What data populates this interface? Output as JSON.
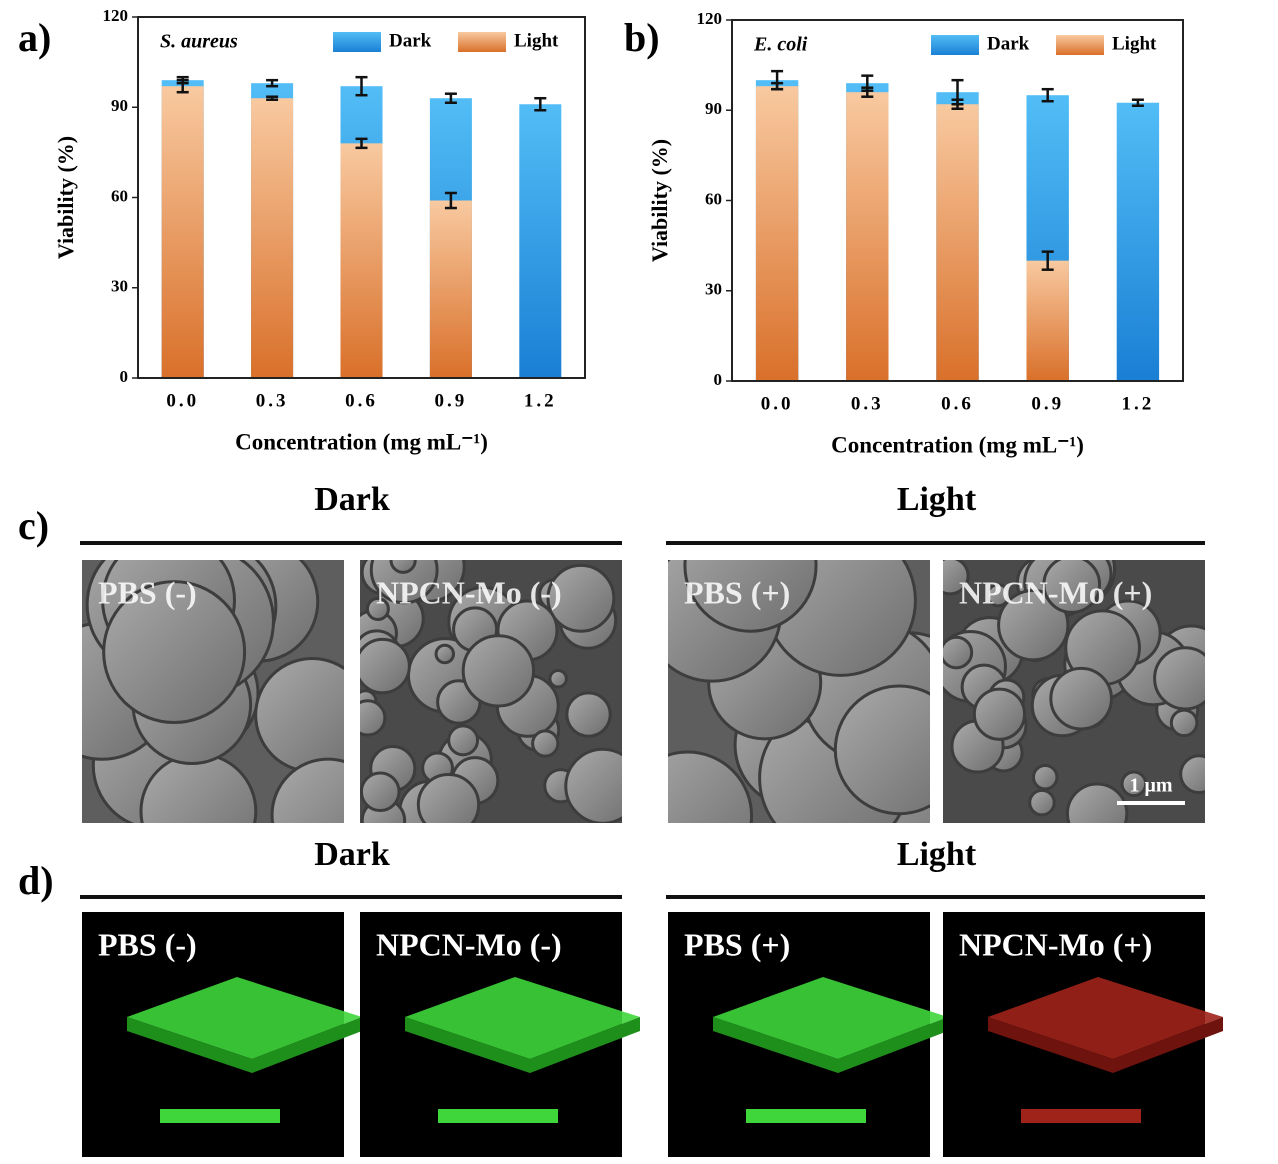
{
  "chart_data": [
    {
      "type": "bar",
      "panel_label": "a)",
      "title": "S. aureus",
      "y_label": "Viability (%)",
      "x_label": "Concentration (mg mL⁻¹)",
      "categories": [
        "0.0",
        "0.3",
        "0.6",
        "0.9",
        "1.2"
      ],
      "series": [
        {
          "name": "Dark",
          "color": "#2b9be6",
          "values": [
            99,
            98,
            97,
            93,
            91
          ],
          "errors": [
            1,
            1,
            3,
            1.5,
            2
          ]
        },
        {
          "name": "Light",
          "color": "#ea8a45",
          "values": [
            97,
            93,
            78,
            59,
            0
          ],
          "errors": [
            2,
            0.5,
            1.5,
            2.5,
            null
          ]
        }
      ],
      "ylim": [
        0,
        120
      ],
      "yticks": [
        0,
        30,
        60,
        90,
        120
      ],
      "legend": "upper right"
    },
    {
      "type": "bar",
      "panel_label": "b)",
      "title": "E. coli",
      "y_label": "Viability (%)",
      "x_label": "Concentration (mg mL⁻¹)",
      "categories": [
        "0.0",
        "0.3",
        "0.6",
        "0.9",
        "1.2"
      ],
      "series": [
        {
          "name": "Dark",
          "color": "#2b9be6",
          "values": [
            100,
            99,
            96,
            95,
            92.5
          ],
          "errors": [
            3,
            2.5,
            4,
            2,
            1
          ]
        },
        {
          "name": "Light",
          "color": "#ea8a45",
          "values": [
            98,
            96,
            92,
            40,
            0
          ],
          "errors": [
            1,
            1.5,
            1.5,
            3,
            null
          ]
        }
      ],
      "ylim": [
        0,
        120
      ],
      "yticks": [
        0,
        30,
        60,
        90,
        120
      ],
      "legend": "upper right"
    }
  ],
  "panels": [
    {
      "label": "c)",
      "kind": "sem",
      "groups": [
        {
          "title": "Dark",
          "images": [
            "PBS (-)",
            "NPCN-Mo (-)"
          ]
        },
        {
          "title": "Light",
          "images": [
            "PBS (+)",
            "NPCN-Mo (+)"
          ]
        }
      ],
      "scale_bar": "1 μm"
    },
    {
      "label": "d)",
      "kind": "confocal",
      "groups": [
        {
          "title": "Dark",
          "images": [
            "PBS (-)",
            "NPCN-Mo (-)"
          ]
        },
        {
          "title": "Light",
          "images": [
            "PBS (+)",
            "NPCN-Mo (+)"
          ]
        }
      ]
    }
  ]
}
